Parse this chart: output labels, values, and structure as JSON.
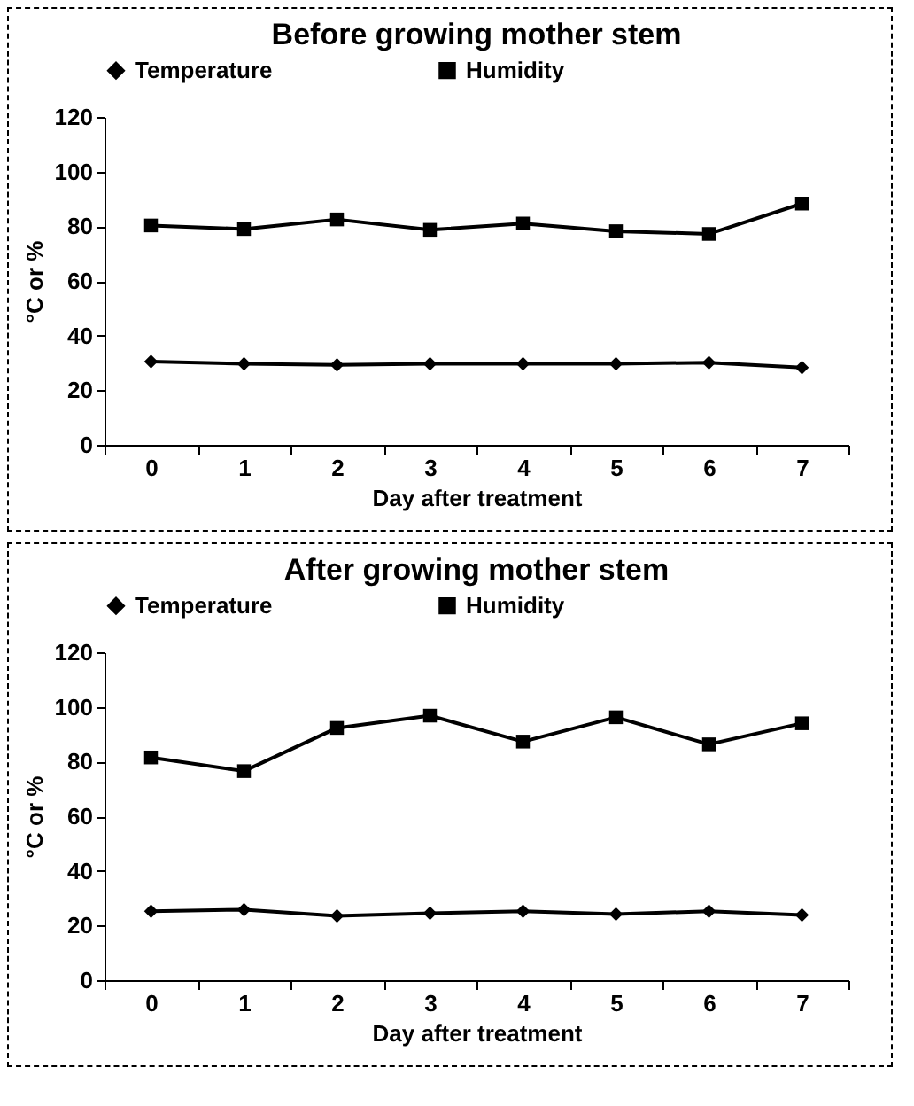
{
  "chart_data": [
    {
      "type": "line",
      "title": "Before growing mother stem",
      "xlabel": "Day after treatment",
      "ylabel": "°C or %",
      "categories": [
        "0",
        "1",
        "2",
        "3",
        "4",
        "5",
        "6",
        "7"
      ],
      "ylim": [
        0,
        120
      ],
      "yticks": [
        0,
        20,
        40,
        60,
        80,
        100,
        120
      ],
      "legend": "top",
      "grid": false,
      "series": [
        {
          "name": "Temperature",
          "color": "#000000",
          "marker": "diamond",
          "values": [
            30.5,
            29.7,
            29.3,
            29.7,
            29.7,
            29.7,
            30.1,
            28.3
          ]
        },
        {
          "name": "Humidity",
          "color": "#000000",
          "marker": "square",
          "values": [
            80.3,
            79,
            82.5,
            78.7,
            81,
            78.2,
            77.2,
            88.3
          ]
        }
      ]
    },
    {
      "type": "line",
      "title": "After growing mother stem",
      "xlabel": "Day after treatment",
      "ylabel": "°C or %",
      "categories": [
        "0",
        "1",
        "2",
        "3",
        "4",
        "5",
        "6",
        "7"
      ],
      "ylim": [
        0,
        120
      ],
      "yticks": [
        0,
        20,
        40,
        60,
        80,
        100,
        120
      ],
      "legend": "top",
      "grid": false,
      "series": [
        {
          "name": "Temperature",
          "color": "#000000",
          "marker": "diamond",
          "values": [
            25.2,
            25.8,
            23.5,
            24.5,
            25.2,
            24.2,
            25.2,
            23.8
          ]
        },
        {
          "name": "Humidity",
          "color": "#000000",
          "marker": "square",
          "values": [
            81.5,
            76.5,
            92.3,
            96.8,
            87.3,
            96.2,
            86.3,
            94
          ]
        }
      ]
    }
  ]
}
